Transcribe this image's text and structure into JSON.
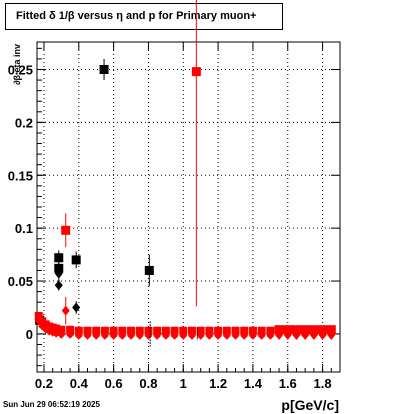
{
  "title": "Fitted δ 1/β versus η and p for Primary muon+",
  "footer": "Sun Jun 29 06:52:19 2025",
  "chart_data": {
    "type": "scatter",
    "title": "Fitted δ 1/β versus η and p for Primary muon+",
    "xlabel": "p[GeV/c]",
    "ylabel": "∂β eta inv",
    "xlim": [
      0.16,
      1.9
    ],
    "ylim": [
      -0.036,
      0.276
    ],
    "xticks": [
      0.2,
      0.4,
      0.6,
      0.8,
      1.0,
      1.2,
      1.4,
      1.6,
      1.8
    ],
    "xtick_labels": [
      "0.2",
      "0.4",
      "0.6",
      "0.8",
      "1",
      "1.2",
      "1.4",
      "1.6",
      "1.8"
    ],
    "yticks": [
      0,
      0.05,
      0.1,
      0.15,
      0.2,
      0.25
    ],
    "ytick_labels": [
      "0",
      "0.05",
      "0.1",
      "0.15",
      "0.2",
      "0.25"
    ],
    "grid": true,
    "colors": {
      "black": "#000000",
      "red": "#ff0000"
    },
    "series": [
      {
        "marker": "square",
        "color": "#000000",
        "points": [
          {
            "x": 0.175,
            "y": 0.013,
            "e": 0.003
          },
          {
            "x": 0.285,
            "y": 0.072,
            "e": 0.007
          },
          {
            "x": 0.285,
            "y": 0.062,
            "e": 0.007
          },
          {
            "x": 0.385,
            "y": 0.07,
            "e": 0.008
          },
          {
            "x": 0.545,
            "y": 0.25,
            "e": 0.01
          },
          {
            "x": 0.805,
            "y": 0.06,
            "e": 0.015
          }
        ]
      },
      {
        "marker": "diamond",
        "color": "#000000",
        "points": [
          {
            "x": 0.285,
            "y": 0.057,
            "e": 0.008
          },
          {
            "x": 0.285,
            "y": 0.046,
            "e": 0.005
          },
          {
            "x": 0.385,
            "y": 0.025,
            "e": 0.006
          }
        ]
      },
      {
        "marker": "square",
        "color": "#ff0000",
        "points": [
          {
            "x": 0.325,
            "y": 0.098,
            "e": 0.016
          },
          {
            "x": 1.075,
            "y": 0.248,
            "e": 0.222
          }
        ]
      },
      {
        "marker": "diamond",
        "color": "#ff0000",
        "points": [
          {
            "x": 0.325,
            "y": 0.022,
            "e": 0.013
          }
        ]
      },
      {
        "marker": "dense-band",
        "color": "#ff0000",
        "points": [
          {
            "x": 0.17,
            "y": 0.017
          },
          {
            "x": 0.19,
            "y": 0.012
          },
          {
            "x": 0.21,
            "y": 0.009
          },
          {
            "x": 0.23,
            "y": 0.007
          },
          {
            "x": 0.25,
            "y": 0.006
          },
          {
            "x": 0.27,
            "y": 0.005
          },
          {
            "x": 0.3,
            "y": 0.004
          },
          {
            "x": 0.35,
            "y": 0.004
          },
          {
            "x": 0.4,
            "y": 0.003
          },
          {
            "x": 0.45,
            "y": 0.003
          },
          {
            "x": 0.5,
            "y": 0.003
          },
          {
            "x": 0.55,
            "y": 0.003
          },
          {
            "x": 0.6,
            "y": 0.003
          },
          {
            "x": 0.65,
            "y": 0.003
          },
          {
            "x": 0.7,
            "y": 0.003
          },
          {
            "x": 0.75,
            "y": 0.003
          },
          {
            "x": 0.8,
            "y": 0.003
          },
          {
            "x": 0.85,
            "y": 0.003
          },
          {
            "x": 0.9,
            "y": 0.003
          },
          {
            "x": 0.95,
            "y": 0.003
          },
          {
            "x": 1.0,
            "y": 0.003
          },
          {
            "x": 1.05,
            "y": 0.003
          },
          {
            "x": 1.1,
            "y": 0.003
          },
          {
            "x": 1.15,
            "y": 0.003
          },
          {
            "x": 1.2,
            "y": 0.003
          },
          {
            "x": 1.25,
            "y": 0.003
          },
          {
            "x": 1.3,
            "y": 0.003
          },
          {
            "x": 1.35,
            "y": 0.003
          },
          {
            "x": 1.4,
            "y": 0.003
          },
          {
            "x": 1.45,
            "y": 0.003
          },
          {
            "x": 1.5,
            "y": 0.003
          }
        ]
      },
      {
        "marker": "square",
        "color": "#ff0000",
        "points": [
          {
            "x": 1.55,
            "y": 0.004
          },
          {
            "x": 1.6,
            "y": 0.004
          },
          {
            "x": 1.65,
            "y": 0.004
          },
          {
            "x": 1.7,
            "y": 0.004
          },
          {
            "x": 1.75,
            "y": 0.004
          },
          {
            "x": 1.8,
            "y": 0.004
          },
          {
            "x": 1.85,
            "y": 0.004
          }
        ]
      },
      {
        "marker": "diamond",
        "color": "#ff0000",
        "points": [
          {
            "x": 1.55,
            "y": -0.001
          },
          {
            "x": 1.6,
            "y": -0.001
          },
          {
            "x": 1.65,
            "y": -0.001
          },
          {
            "x": 1.7,
            "y": -0.001
          },
          {
            "x": 1.75,
            "y": -0.001
          },
          {
            "x": 1.8,
            "y": -0.001
          },
          {
            "x": 1.85,
            "y": -0.001
          }
        ]
      },
      {
        "marker": "vertical-line",
        "color": "#000000",
        "points": [
          {
            "x": 0.81,
            "y": 0.0,
            "e": 0.012
          },
          {
            "x": 1.08,
            "y": 0.0,
            "e": 0.006
          }
        ]
      }
    ]
  }
}
